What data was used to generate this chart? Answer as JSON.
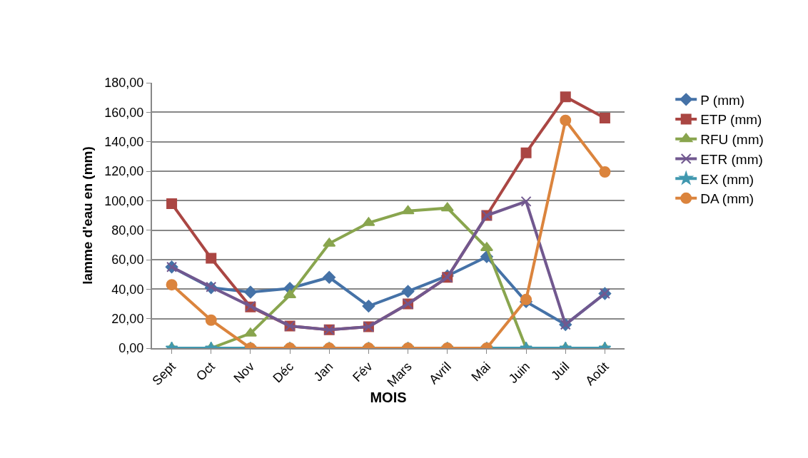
{
  "chart_data": {
    "type": "line",
    "xlabel": "MOIS",
    "ylabel": "lamme d'eau en (mm)",
    "categories": [
      "Sept",
      "Oct",
      "Nov",
      "Déc",
      "Jan",
      "Fév",
      "Mars",
      "Avril",
      "Mai",
      "Juin",
      "Juil",
      "Août"
    ],
    "series": [
      {
        "name": "P (mm)",
        "color": "#4572a7",
        "marker": "diamond",
        "values": [
          55,
          41,
          38,
          40.5,
          48,
          28.5,
          38.5,
          49,
          62,
          31.5,
          16,
          37
        ]
      },
      {
        "name": "ETP (mm)",
        "color": "#aa4643",
        "marker": "square",
        "values": [
          98,
          61,
          28,
          15,
          12.5,
          14.5,
          30,
          48,
          90,
          132.5,
          170.5,
          156
        ]
      },
      {
        "name": "RFU (mm)",
        "color": "#89a54e",
        "marker": "triangle",
        "values": [
          0,
          0,
          10,
          36,
          71,
          85,
          93,
          95,
          68,
          0,
          0,
          0
        ]
      },
      {
        "name": "ETR (mm)",
        "color": "#71588f",
        "marker": "cross",
        "values": [
          55,
          41.5,
          28.5,
          15,
          12.5,
          14.5,
          30,
          48,
          90,
          99.5,
          16,
          37
        ]
      },
      {
        "name": "EX (mm)",
        "color": "#4198af",
        "marker": "star",
        "values": [
          0,
          0,
          0,
          0,
          0,
          0,
          0,
          0,
          0,
          0,
          0,
          0
        ]
      },
      {
        "name": "DA (mm)",
        "color": "#db843d",
        "marker": "circle",
        "values": [
          43,
          19,
          0,
          0,
          0,
          0,
          0,
          0,
          0,
          33,
          154.5,
          119.5
        ]
      }
    ],
    "ylim": [
      0,
      180
    ],
    "yticks": [
      {
        "value": 0,
        "label": "0,00"
      },
      {
        "value": 20,
        "label": "20,00"
      },
      {
        "value": 40,
        "label": "40,00"
      },
      {
        "value": 60,
        "label": "60,00"
      },
      {
        "value": 80,
        "label": "80,00"
      },
      {
        "value": 100,
        "label": "100,00"
      },
      {
        "value": 120,
        "label": "120,00"
      },
      {
        "value": 140,
        "label": "140,00"
      },
      {
        "value": 160,
        "label": "160,00"
      },
      {
        "value": 180,
        "label": "180,00"
      }
    ],
    "grid": "y",
    "legend": "right",
    "line_style": "solid"
  }
}
